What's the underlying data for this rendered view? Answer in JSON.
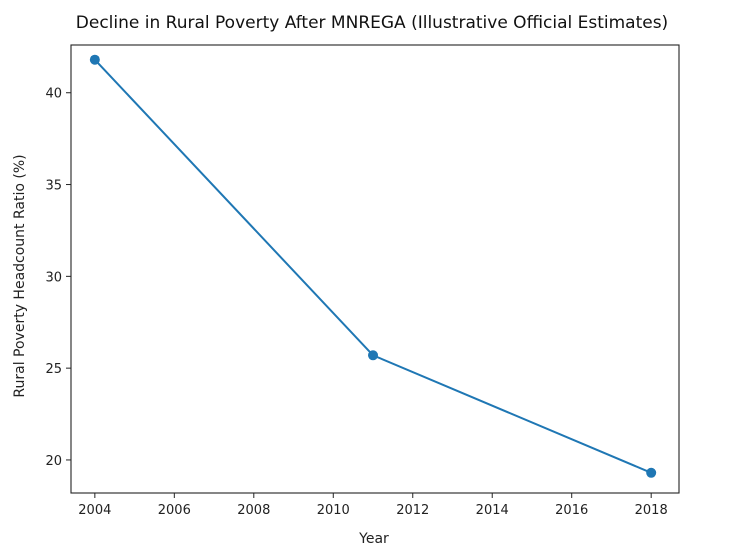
{
  "chart_data": {
    "type": "line",
    "title": "Decline in Rural Poverty After MNREGA (Illustrative Official Estimates)",
    "xlabel": "Year",
    "ylabel": "Rural Poverty Headcount Ratio (%)",
    "x": [
      2004,
      2011,
      2018
    ],
    "series": [
      {
        "name": "Rural Poverty Headcount Ratio",
        "values": [
          41.8,
          25.7,
          19.3
        ],
        "color": "#1f77b4",
        "marker": "circle"
      }
    ],
    "xlim": [
      2003.4,
      2018.7
    ],
    "ylim": [
      18.2,
      42.6
    ],
    "xticks": [
      2004,
      2006,
      2008,
      2010,
      2012,
      2014,
      2016,
      2018
    ],
    "xtick_labels": [
      "2004",
      "2006",
      "2008",
      "2010",
      "2012",
      "2014",
      "2016",
      "2018"
    ],
    "yticks": [
      20,
      25,
      30,
      35,
      40
    ],
    "ytick_labels": [
      "20",
      "25",
      "30",
      "35",
      "40"
    ],
    "grid": false,
    "legend": "none"
  }
}
